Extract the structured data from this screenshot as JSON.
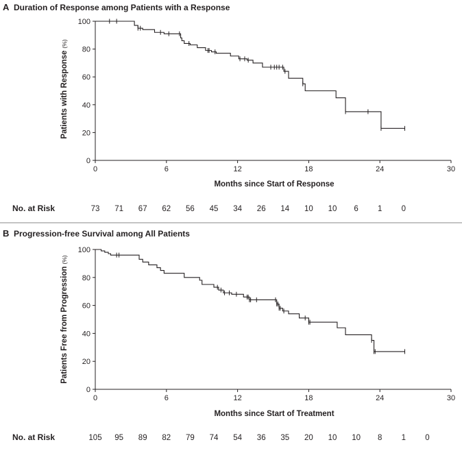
{
  "chart_data": [
    {
      "type": "line",
      "panel_letter": "A",
      "title": "Duration of Response among Patients with a Response",
      "xlabel": "Months since Start of Response",
      "ylabel": "Patients with Response",
      "ylabel_unit": "(%)",
      "xlim": [
        0,
        30
      ],
      "ylim": [
        0,
        100
      ],
      "xticks": [
        0,
        6,
        12,
        18,
        24,
        30
      ],
      "yticks": [
        0,
        20,
        40,
        60,
        80,
        100
      ],
      "grid": false,
      "series": [
        {
          "steps": [
            [
              0,
              100
            ],
            [
              3.3,
              97
            ],
            [
              3.6,
              95
            ],
            [
              4,
              94
            ],
            [
              5,
              92
            ],
            [
              5.8,
              91
            ],
            [
              7.2,
              88
            ],
            [
              7.3,
              86
            ],
            [
              7.5,
              84
            ],
            [
              8,
              83
            ],
            [
              8.6,
              81
            ],
            [
              9.3,
              79
            ],
            [
              9.8,
              78
            ],
            [
              10.2,
              77
            ],
            [
              11.4,
              75
            ],
            [
              12.1,
              73
            ],
            [
              12.8,
              72
            ],
            [
              13.3,
              70
            ],
            [
              14.1,
              67
            ],
            [
              15.9,
              64
            ],
            [
              16.3,
              59
            ],
            [
              17.5,
              55
            ],
            [
              17.7,
              50
            ],
            [
              20.3,
              45
            ],
            [
              21.1,
              35
            ],
            [
              24.1,
              23
            ],
            [
              26.1,
              23
            ]
          ],
          "censor_times": [
            1.2,
            1.8,
            3.6,
            3.8,
            5.5,
            6.2,
            7.1,
            7.9,
            9.5,
            9.6,
            10.1,
            12.2,
            12.6,
            12.9,
            14.8,
            15.1,
            15.3,
            15.5,
            15.8,
            16,
            17.5,
            21.1,
            23,
            24.1,
            26.1
          ]
        }
      ],
      "risk_label": "No. at Risk",
      "risk_times": [
        0,
        2,
        4,
        6,
        8,
        10,
        12,
        14,
        16,
        18,
        20,
        22,
        24,
        26
      ],
      "risk_values": [
        "73",
        "71",
        "67",
        "62",
        "56",
        "45",
        "34",
        "26",
        "14",
        "10",
        "10",
        "6",
        "1",
        "0"
      ]
    },
    {
      "type": "line",
      "panel_letter": "B",
      "title": "Progression-free Survival among All Patients",
      "xlabel": "Months since Start of Treatment",
      "ylabel": "Patients Free from Progression",
      "ylabel_unit": "(%)",
      "xlim": [
        0,
        30
      ],
      "ylim": [
        0,
        100
      ],
      "xticks": [
        0,
        6,
        12,
        18,
        24,
        30
      ],
      "yticks": [
        0,
        20,
        40,
        60,
        80,
        100
      ],
      "grid": false,
      "series": [
        {
          "steps": [
            [
              0,
              100
            ],
            [
              0.5,
              99
            ],
            [
              0.8,
              98
            ],
            [
              1.1,
              97
            ],
            [
              1.3,
              96
            ],
            [
              3.7,
              93
            ],
            [
              4,
              91
            ],
            [
              4.5,
              89
            ],
            [
              5.2,
              87
            ],
            [
              5.5,
              85
            ],
            [
              5.8,
              83
            ],
            [
              7.5,
              80
            ],
            [
              8.8,
              78
            ],
            [
              9,
              75
            ],
            [
              10,
              73
            ],
            [
              10.4,
              71
            ],
            [
              10.8,
              69
            ],
            [
              11.5,
              68
            ],
            [
              12.5,
              66
            ],
            [
              13,
              64
            ],
            [
              15.3,
              61
            ],
            [
              15.5,
              58
            ],
            [
              15.8,
              56
            ],
            [
              16.3,
              54
            ],
            [
              17.2,
              51
            ],
            [
              18,
              48
            ],
            [
              20.4,
              44
            ],
            [
              21.1,
              39
            ],
            [
              23.3,
              35
            ],
            [
              23.5,
              27
            ],
            [
              26.1,
              27
            ]
          ],
          "censor_times": [
            1.8,
            2,
            10.3,
            10.6,
            10.9,
            11.3,
            11.9,
            12.8,
            12.9,
            13,
            13.1,
            13.6,
            15.2,
            15.3,
            15.4,
            15.5,
            15.6,
            15.9,
            17.7,
            18,
            18.1,
            23.3,
            23.5,
            23.6,
            26.1
          ]
        }
      ],
      "risk_label": "No. at Risk",
      "risk_times": [
        0,
        2,
        4,
        6,
        8,
        10,
        12,
        14,
        16,
        18,
        20,
        22,
        24,
        26,
        28
      ],
      "risk_values": [
        "105",
        "95",
        "89",
        "82",
        "79",
        "74",
        "54",
        "36",
        "35",
        "20",
        "10",
        "10",
        "8",
        "1",
        "0"
      ]
    }
  ]
}
